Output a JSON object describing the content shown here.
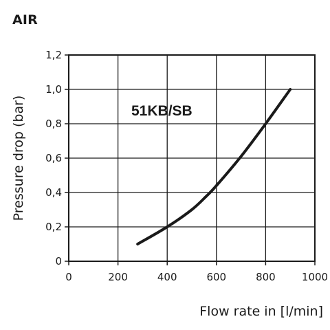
{
  "header": {
    "medium": "AIR"
  },
  "chart_data": {
    "type": "line",
    "xlabel": "Flow rate in [l/min]",
    "ylabel": "Pressure drop (bar)",
    "xlim": [
      0,
      1000
    ],
    "ylim": [
      0,
      1.2
    ],
    "x_ticks": [
      0,
      200,
      400,
      600,
      800,
      1000
    ],
    "x_tick_labels": [
      "0",
      "200",
      "400",
      "600",
      "800",
      "1000"
    ],
    "y_ticks": [
      0,
      0.2,
      0.4,
      0.6,
      0.8,
      1.0,
      1.2
    ],
    "y_tick_labels": [
      "0",
      "0,2",
      "0,4",
      "0,6",
      "0,8",
      "1,0",
      "1,2"
    ],
    "grid": true,
    "annotations": [
      {
        "text": "51KB/SB"
      }
    ],
    "series": [
      {
        "color": "#1a1a1a",
        "x": [
          280,
          400,
          500,
          560,
          600,
          700,
          800,
          900
        ],
        "y": [
          0.1,
          0.2,
          0.3,
          0.38,
          0.44,
          0.61,
          0.8,
          1.0
        ]
      }
    ]
  }
}
